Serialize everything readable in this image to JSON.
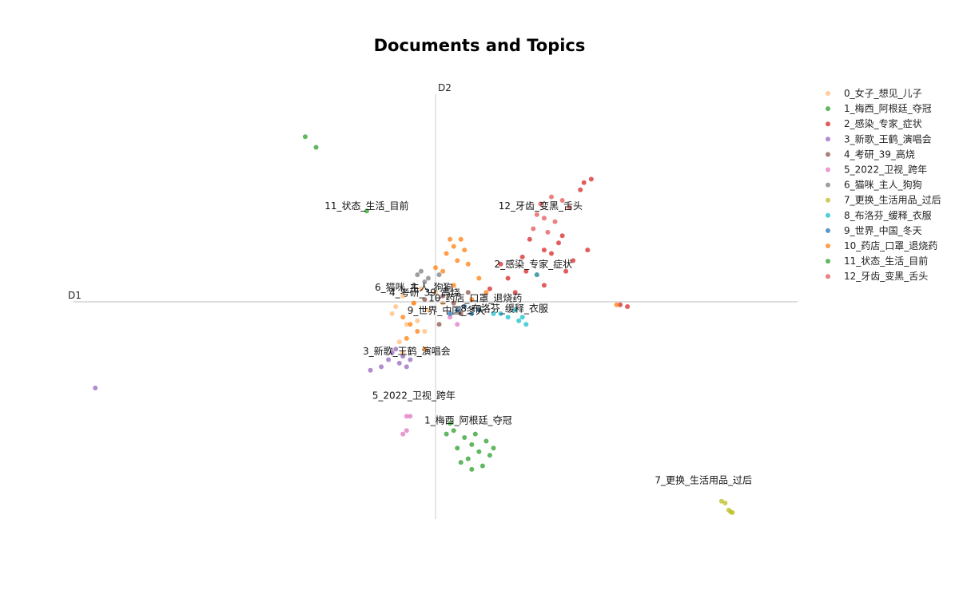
{
  "chart_data": {
    "type": "scatter",
    "title": "Documents and Topics",
    "xlabel": "D1",
    "ylabel": "D2",
    "xlim": [
      -10,
      10
    ],
    "ylim": [
      -6,
      6
    ],
    "grid": false,
    "legend_position": "right",
    "series": [
      {
        "name": "0_女子_想见_儿子",
        "color": "#ffbb78",
        "points": [
          [
            -0.9,
            0.3
          ],
          [
            -0.6,
            0.1
          ],
          [
            -1.2,
            -0.2
          ],
          [
            -0.4,
            0.5
          ],
          [
            -0.8,
            -0.5
          ],
          [
            -0.2,
            -0.1
          ],
          [
            -1.0,
            -1.0
          ],
          [
            -0.3,
            -0.7
          ],
          [
            0.2,
            0.1
          ],
          [
            -1.1,
            0.0
          ],
          [
            -0.5,
            -0.4
          ],
          [
            0.0,
            0.4
          ],
          [
            -0.9,
            -1.3
          ]
        ]
      },
      {
        "name": "1_梅西_阿根廷_夺冠",
        "color": "#2ca02c",
        "points": [
          [
            0.5,
            -3.5
          ],
          [
            0.8,
            -3.7
          ],
          [
            1.0,
            -3.9
          ],
          [
            1.2,
            -4.1
          ],
          [
            0.6,
            -4.0
          ],
          [
            1.4,
            -3.8
          ],
          [
            0.9,
            -4.3
          ],
          [
            1.5,
            -4.2
          ],
          [
            0.4,
            -3.3
          ],
          [
            1.1,
            -3.6
          ],
          [
            0.7,
            -4.4
          ],
          [
            1.3,
            -4.5
          ],
          [
            1.6,
            -4.0
          ],
          [
            0.3,
            -3.6
          ],
          [
            1.0,
            -4.6
          ]
        ]
      },
      {
        "name": "2_感染_专家_症状",
        "color": "#d62728",
        "points": [
          [
            1.5,
            0.5
          ],
          [
            2.0,
            0.8
          ],
          [
            2.5,
            1.0
          ],
          [
            3.0,
            1.6
          ],
          [
            3.5,
            2.0
          ],
          [
            2.8,
            0.9
          ],
          [
            3.2,
            1.5
          ],
          [
            2.2,
            0.4
          ],
          [
            3.8,
            1.3
          ],
          [
            2.6,
            1.9
          ],
          [
            3.0,
            0.6
          ],
          [
            1.8,
            1.2
          ],
          [
            4.1,
            3.5
          ],
          [
            4.3,
            3.6
          ],
          [
            4.0,
            3.3
          ],
          [
            2.4,
            1.4
          ],
          [
            3.6,
            1.0
          ],
          [
            4.2,
            1.6
          ],
          [
            5.1,
            0.05
          ],
          [
            5.3,
            0.0
          ],
          [
            3.4,
            1.8
          ]
        ]
      },
      {
        "name": "3_新歌_王鹤_演唱会",
        "color": "#9467bd",
        "points": [
          [
            -1.3,
            -1.5
          ],
          [
            -1.0,
            -1.6
          ],
          [
            -0.9,
            -1.4
          ],
          [
            -1.5,
            -1.7
          ],
          [
            -1.2,
            -1.3
          ],
          [
            -0.7,
            -1.5
          ],
          [
            -1.8,
            -1.8
          ],
          [
            -1.1,
            -1.2
          ],
          [
            -9.4,
            -2.3
          ],
          [
            -0.8,
            -1.7
          ]
        ]
      },
      {
        "name": "4_考研_39_高烧",
        "color": "#8c564b",
        "points": [
          [
            0.2,
            0.3
          ],
          [
            0.5,
            0.1
          ],
          [
            -0.3,
            0.2
          ],
          [
            0.7,
            -0.2
          ],
          [
            0.1,
            -0.5
          ],
          [
            0.9,
            0.4
          ]
        ]
      },
      {
        "name": "5_2022_卫视_跨年",
        "color": "#e377c2",
        "points": [
          [
            -0.8,
            -3.1
          ],
          [
            -0.7,
            -3.1
          ],
          [
            -0.9,
            -3.6
          ],
          [
            -0.8,
            -3.5
          ],
          [
            0.4,
            -0.3
          ],
          [
            0.6,
            -0.5
          ]
        ]
      },
      {
        "name": "6_猫咪_主人_狗狗",
        "color": "#7f7f7f",
        "points": [
          [
            -0.5,
            0.9
          ],
          [
            -0.4,
            1.0
          ],
          [
            -0.2,
            0.8
          ],
          [
            -0.6,
            0.6
          ],
          [
            0.1,
            0.9
          ],
          [
            -0.3,
            0.7
          ],
          [
            0.3,
            0.5
          ]
        ]
      },
      {
        "name": "7_更换_生活用品_过后",
        "color": "#bcbd22",
        "points": [
          [
            7.9,
            -5.5
          ],
          [
            8.0,
            -5.55
          ],
          [
            8.1,
            -5.75
          ],
          [
            8.15,
            -5.8
          ],
          [
            8.2,
            -5.82
          ]
        ]
      },
      {
        "name": "8_布洛芬_缓释_衣服",
        "color": "#17becf",
        "points": [
          [
            1.8,
            -0.2
          ],
          [
            2.0,
            -0.3
          ],
          [
            2.3,
            -0.4
          ],
          [
            2.5,
            -0.5
          ],
          [
            2.2,
            -0.1
          ],
          [
            2.8,
            0.9
          ],
          [
            1.6,
            -0.2
          ],
          [
            2.4,
            -0.3
          ]
        ]
      },
      {
        "name": "9_世界_中国_冬天",
        "color": "#1f77b4",
        "points": [
          [
            0.6,
            -0.1
          ],
          [
            1.0,
            -0.2
          ],
          [
            0.8,
            0.0
          ],
          [
            1.2,
            -0.1
          ],
          [
            0.4,
            -0.2
          ]
        ]
      },
      {
        "name": "10_药店_口罩_退烧药",
        "color": "#ff7f0e",
        "points": [
          [
            0.3,
            1.5
          ],
          [
            0.5,
            1.7
          ],
          [
            0.6,
            1.3
          ],
          [
            0.8,
            1.6
          ],
          [
            0.0,
            1.1
          ],
          [
            0.2,
            1.0
          ],
          [
            0.5,
            0.6
          ],
          [
            0.9,
            1.2
          ],
          [
            1.2,
            0.8
          ],
          [
            1.0,
            0.2
          ],
          [
            -0.6,
            0.1
          ],
          [
            -0.9,
            -0.3
          ],
          [
            -0.5,
            -0.7
          ],
          [
            -0.8,
            -0.9
          ],
          [
            -0.3,
            -1.2
          ],
          [
            0.4,
            1.9
          ],
          [
            0.7,
            1.9
          ],
          [
            1.4,
            0.4
          ],
          [
            5.0,
            0.05
          ],
          [
            -0.7,
            -0.5
          ]
        ]
      },
      {
        "name": "11_状态_生活_目前",
        "color": "#2ca02c",
        "points": [
          [
            -3.6,
            4.8
          ],
          [
            -3.3,
            4.5
          ],
          [
            -1.9,
            2.7
          ]
        ]
      },
      {
        "name": "12_牙齿_变黑_舌头",
        "color": "#e45756",
        "points": [
          [
            2.9,
            2.9
          ],
          [
            3.1,
            2.1
          ],
          [
            3.3,
            2.4
          ],
          [
            2.7,
            2.2
          ],
          [
            3.5,
            3.0
          ],
          [
            3.7,
            2.8
          ],
          [
            3.2,
            3.1
          ],
          [
            2.8,
            2.6
          ],
          [
            3.0,
            2.5
          ]
        ]
      }
    ],
    "topic_labels": [
      {
        "text": "11_状态_生活_目前",
        "x": -1.9,
        "y": 2.75
      },
      {
        "text": "12_牙齿_变黑_舌头",
        "x": 2.9,
        "y": 2.75
      },
      {
        "text": "2_感染_专家_症状",
        "x": 2.7,
        "y": 1.1
      },
      {
        "text": "6_猫咪_主人_狗狗",
        "x": -0.6,
        "y": 0.45
      },
      {
        "text": "4_考研_39_高烧",
        "x": -0.3,
        "y": 0.3
      },
      {
        "text": "10_药店_口罩_退烧药",
        "x": 1.1,
        "y": 0.15
      },
      {
        "text": "9_世界_中国_冬天",
        "x": 0.3,
        "y": -0.2
      },
      {
        "text": "8_布洛芬_缓释_衣服",
        "x": 1.9,
        "y": -0.15
      },
      {
        "text": "3_新歌_王鹤_演唱会",
        "x": -0.8,
        "y": -1.35
      },
      {
        "text": "5_2022_卫视_跨年",
        "x": -0.6,
        "y": -2.6
      },
      {
        "text": "1_梅西_阿根廷_夺冠",
        "x": 0.9,
        "y": -3.3
      },
      {
        "text": "7_更换_生活用品_过后",
        "x": 7.4,
        "y": -5.0
      }
    ]
  }
}
